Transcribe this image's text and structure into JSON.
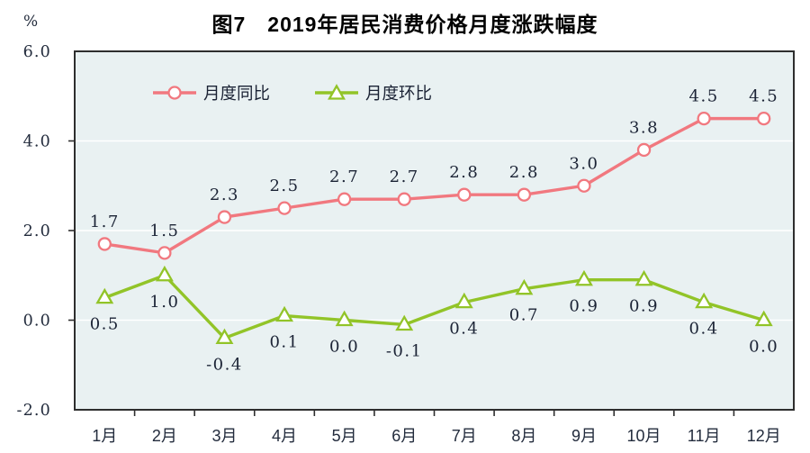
{
  "figure": {
    "title": "图7　2019年居民消费价格月度涨跌幅度",
    "y_unit_label": "%"
  },
  "y_axis": {
    "tick_labels": [
      "6.0",
      "4.0",
      "2.0",
      "0.0",
      "-2.0"
    ],
    "tick_values": [
      6,
      4,
      2,
      0,
      -2
    ],
    "grid_values": [
      4,
      2,
      0
    ]
  },
  "x_axis": {
    "labels": [
      "1月",
      "2月",
      "3月",
      "4月",
      "5月",
      "6月",
      "7月",
      "8月",
      "9月",
      "10月",
      "11月",
      "12月"
    ]
  },
  "legend": {
    "items": [
      {
        "label": "月度同比",
        "marker": "circle",
        "color": "#f1787f"
      },
      {
        "label": "月度环比",
        "marker": "triangle",
        "color": "#92c428"
      }
    ]
  },
  "colors": {
    "yoy_line": "#f1787f",
    "mom_line": "#92c428",
    "plot_background": "#e9f1f2",
    "gridline": "#ffffff",
    "border": "#2e2e2e",
    "axis_text": "#232c3d",
    "label_text": "#1b2335"
  },
  "chart_data": {
    "type": "line",
    "title": "图7 2019年居民消费价格月度涨跌幅度",
    "categories": [
      "1月",
      "2月",
      "3月",
      "4月",
      "5月",
      "6月",
      "7月",
      "8月",
      "9月",
      "10月",
      "11月",
      "12月"
    ],
    "series": [
      {
        "name": "月度同比",
        "marker": "circle",
        "color": "#f1787f",
        "label_position": "above",
        "values": [
          1.7,
          1.5,
          2.3,
          2.5,
          2.7,
          2.7,
          2.8,
          2.8,
          3.0,
          3.8,
          4.5,
          4.5
        ]
      },
      {
        "name": "月度环比",
        "marker": "triangle",
        "color": "#92c428",
        "label_position": "below",
        "values": [
          0.5,
          1.0,
          -0.4,
          0.1,
          0.0,
          -0.1,
          0.4,
          0.7,
          0.9,
          0.9,
          0.4,
          0.0
        ]
      }
    ],
    "xlabel": "",
    "ylabel": "%",
    "ylim": [
      -2,
      6
    ],
    "grid": true,
    "legend_position": "top-center",
    "data_labels": true
  }
}
